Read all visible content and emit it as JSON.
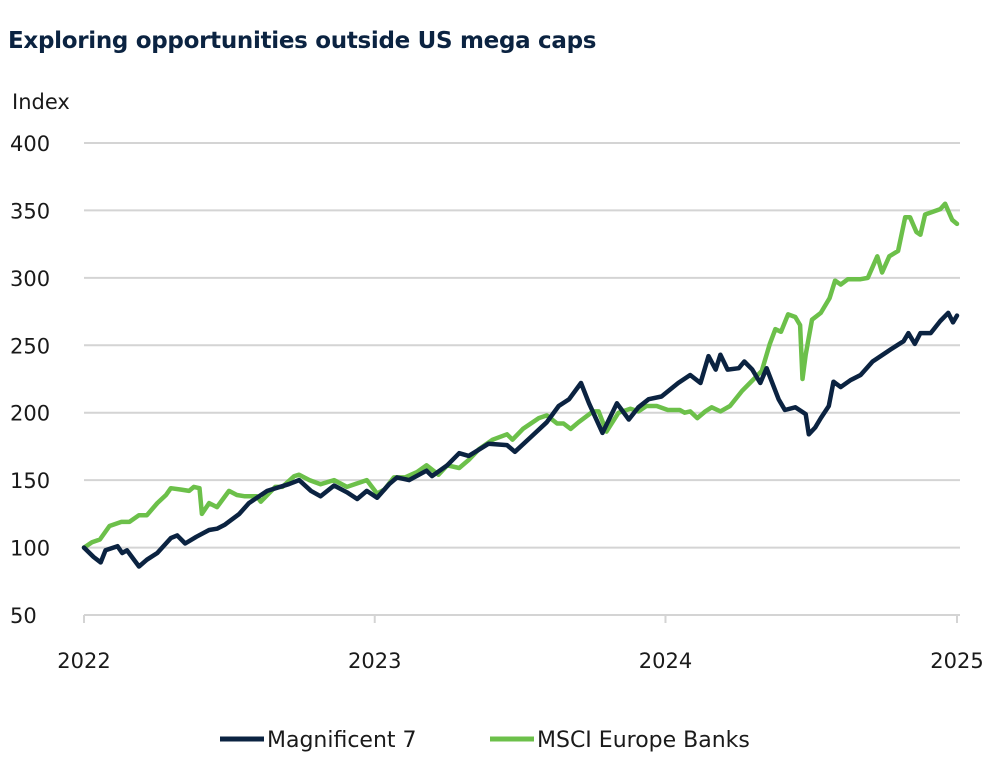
{
  "chart_data": {
    "type": "line",
    "title": "Exploring opportunities outside US mega caps",
    "ylabel": "Index",
    "xlabel": "",
    "ylim": [
      50,
      400
    ],
    "yticks": [
      50,
      100,
      150,
      200,
      250,
      300,
      350,
      400
    ],
    "xlim": [
      "2022-01-01",
      "2025-01-01"
    ],
    "xticks": [
      "2022",
      "2023",
      "2024",
      "2025"
    ],
    "grid": "horizontal",
    "legend": "bottom",
    "series": [
      {
        "name": "Magnificent 7",
        "color": "#0b2341",
        "points": [
          [
            "2022-01-01",
            100
          ],
          [
            "2022-01-13",
            93
          ],
          [
            "2022-01-22",
            89
          ],
          [
            "2022-01-28",
            98
          ],
          [
            "2022-02-12",
            101
          ],
          [
            "2022-02-18",
            96
          ],
          [
            "2022-02-24",
            98
          ],
          [
            "2022-03-11",
            86
          ],
          [
            "2022-03-21",
            91
          ],
          [
            "2022-04-03",
            96
          ],
          [
            "2022-04-20",
            107
          ],
          [
            "2022-04-28",
            109
          ],
          [
            "2022-05-08",
            103
          ],
          [
            "2022-05-22",
            108
          ],
          [
            "2022-06-07",
            113
          ],
          [
            "2022-06-17",
            114
          ],
          [
            "2022-06-27",
            117
          ],
          [
            "2022-07-15",
            125
          ],
          [
            "2022-07-27",
            133
          ],
          [
            "2022-08-19",
            142
          ],
          [
            "2022-09-15",
            147
          ],
          [
            "2022-09-28",
            150
          ],
          [
            "2022-10-13",
            142
          ],
          [
            "2022-10-25",
            138
          ],
          [
            "2022-11-11",
            146
          ],
          [
            "2022-11-27",
            141
          ],
          [
            "2022-12-10",
            136
          ],
          [
            "2022-12-22",
            142
          ],
          [
            "2023-01-04",
            137
          ],
          [
            "2023-01-19",
            147
          ],
          [
            "2023-01-29",
            152
          ],
          [
            "2023-02-13",
            150
          ],
          [
            "2023-03-07",
            157
          ],
          [
            "2023-03-14",
            153
          ],
          [
            "2023-04-02",
            161
          ],
          [
            "2023-04-17",
            170
          ],
          [
            "2023-04-29",
            168
          ],
          [
            "2023-05-24",
            177
          ],
          [
            "2023-06-16",
            176
          ],
          [
            "2023-06-26",
            171
          ],
          [
            "2023-07-16",
            182
          ],
          [
            "2023-08-05",
            193
          ],
          [
            "2023-08-20",
            205
          ],
          [
            "2023-09-02",
            210
          ],
          [
            "2023-09-17",
            222
          ],
          [
            "2023-09-27",
            207
          ],
          [
            "2023-10-14",
            185
          ],
          [
            "2023-11-01",
            207
          ],
          [
            "2023-11-16",
            195
          ],
          [
            "2023-11-28",
            204
          ],
          [
            "2023-12-11",
            210
          ],
          [
            "2023-12-27",
            212
          ],
          [
            "2024-01-17",
            222
          ],
          [
            "2024-02-01",
            228
          ],
          [
            "2024-02-14",
            222
          ],
          [
            "2024-02-24",
            242
          ],
          [
            "2024-03-04",
            232
          ],
          [
            "2024-03-10",
            243
          ],
          [
            "2024-03-19",
            232
          ],
          [
            "2024-04-02",
            233
          ],
          [
            "2024-04-09",
            238
          ],
          [
            "2024-04-19",
            232
          ],
          [
            "2024-04-29",
            222
          ],
          [
            "2024-05-07",
            233
          ],
          [
            "2024-05-22",
            210
          ],
          [
            "2024-05-30",
            202
          ],
          [
            "2024-06-12",
            204
          ],
          [
            "2024-06-25",
            199
          ],
          [
            "2024-06-29",
            184
          ],
          [
            "2024-07-07",
            189
          ],
          [
            "2024-07-14",
            196
          ],
          [
            "2024-07-24",
            205
          ],
          [
            "2024-07-30",
            223
          ],
          [
            "2024-08-08",
            219
          ],
          [
            "2024-08-20",
            224
          ],
          [
            "2024-09-02",
            228
          ],
          [
            "2024-09-17",
            238
          ],
          [
            "2024-10-10",
            247
          ],
          [
            "2024-10-26",
            253
          ],
          [
            "2024-11-01",
            259
          ],
          [
            "2024-11-09",
            251
          ],
          [
            "2024-11-16",
            259
          ],
          [
            "2024-11-29",
            259
          ],
          [
            "2024-12-11",
            268
          ],
          [
            "2024-12-21",
            274
          ],
          [
            "2024-12-27",
            267
          ],
          [
            "2025-01-01",
            272
          ]
        ]
      },
      {
        "name": "MSCI Europe Banks",
        "color": "#6cc04a",
        "points": [
          [
            "2022-01-01",
            100
          ],
          [
            "2022-01-11",
            104
          ],
          [
            "2022-01-21",
            106
          ],
          [
            "2022-02-02",
            116
          ],
          [
            "2022-02-17",
            119
          ],
          [
            "2022-02-27",
            119
          ],
          [
            "2022-03-11",
            124
          ],
          [
            "2022-03-21",
            124
          ],
          [
            "2022-04-03",
            133
          ],
          [
            "2022-04-14",
            139
          ],
          [
            "2022-04-20",
            144
          ],
          [
            "2022-05-03",
            143
          ],
          [
            "2022-05-13",
            142
          ],
          [
            "2022-05-19",
            145
          ],
          [
            "2022-05-26",
            144
          ],
          [
            "2022-05-29",
            125
          ],
          [
            "2022-06-07",
            133
          ],
          [
            "2022-06-17",
            130
          ],
          [
            "2022-07-02",
            142
          ],
          [
            "2022-07-12",
            139
          ],
          [
            "2022-07-22",
            138
          ],
          [
            "2022-08-06",
            138
          ],
          [
            "2022-08-11",
            134
          ],
          [
            "2022-08-29",
            145
          ],
          [
            "2022-09-07",
            145
          ],
          [
            "2022-09-22",
            153
          ],
          [
            "2022-09-28",
            154
          ],
          [
            "2022-10-11",
            150
          ],
          [
            "2022-10-25",
            147
          ],
          [
            "2022-11-11",
            150
          ],
          [
            "2022-11-27",
            145
          ],
          [
            "2022-12-22",
            150
          ],
          [
            "2023-01-04",
            140
          ],
          [
            "2023-01-13",
            143
          ],
          [
            "2023-01-25",
            152
          ],
          [
            "2023-02-08",
            152
          ],
          [
            "2023-02-23",
            156
          ],
          [
            "2023-03-07",
            161
          ],
          [
            "2023-03-22",
            154
          ],
          [
            "2023-04-02",
            161
          ],
          [
            "2023-04-17",
            159
          ],
          [
            "2023-04-29",
            165
          ],
          [
            "2023-05-12",
            173
          ],
          [
            "2023-05-29",
            180
          ],
          [
            "2023-06-16",
            184
          ],
          [
            "2023-06-23",
            180
          ],
          [
            "2023-07-06",
            188
          ],
          [
            "2023-07-26",
            196
          ],
          [
            "2023-08-05",
            198
          ],
          [
            "2023-08-18",
            192
          ],
          [
            "2023-08-26",
            192
          ],
          [
            "2023-09-04",
            188
          ],
          [
            "2023-09-14",
            193
          ],
          [
            "2023-10-02",
            201
          ],
          [
            "2023-10-09",
            201
          ],
          [
            "2023-10-19",
            186
          ],
          [
            "2023-11-03",
            200
          ],
          [
            "2023-11-18",
            203
          ],
          [
            "2023-11-28",
            201
          ],
          [
            "2023-12-08",
            205
          ],
          [
            "2023-12-21",
            205
          ],
          [
            "2024-01-04",
            202
          ],
          [
            "2024-01-19",
            202
          ],
          [
            "2024-01-25",
            200
          ],
          [
            "2024-02-01",
            201
          ],
          [
            "2024-02-10",
            196
          ],
          [
            "2024-02-20",
            201
          ],
          [
            "2024-02-28",
            204
          ],
          [
            "2024-03-10",
            201
          ],
          [
            "2024-03-22",
            205
          ],
          [
            "2024-04-06",
            216
          ],
          [
            "2024-04-16",
            222
          ],
          [
            "2024-05-01",
            231
          ],
          [
            "2024-05-11",
            251
          ],
          [
            "2024-05-18",
            262
          ],
          [
            "2024-05-25",
            260
          ],
          [
            "2024-06-03",
            273
          ],
          [
            "2024-06-12",
            271
          ],
          [
            "2024-06-18",
            265
          ],
          [
            "2024-06-21",
            225
          ],
          [
            "2024-06-25",
            243
          ],
          [
            "2024-07-03",
            269
          ],
          [
            "2024-07-14",
            274
          ],
          [
            "2024-07-25",
            285
          ],
          [
            "2024-08-01",
            298
          ],
          [
            "2024-08-08",
            295
          ],
          [
            "2024-08-17",
            299
          ],
          [
            "2024-09-02",
            299
          ],
          [
            "2024-09-11",
            300
          ],
          [
            "2024-09-23",
            316
          ],
          [
            "2024-09-29",
            304
          ],
          [
            "2024-10-08",
            316
          ],
          [
            "2024-10-19",
            320
          ],
          [
            "2024-10-28",
            345
          ],
          [
            "2024-11-03",
            345
          ],
          [
            "2024-11-11",
            334
          ],
          [
            "2024-11-16",
            332
          ],
          [
            "2024-11-22",
            347
          ],
          [
            "2024-12-11",
            351
          ],
          [
            "2024-12-17",
            355
          ],
          [
            "2024-12-26",
            343
          ],
          [
            "2025-01-01",
            340
          ]
        ]
      }
    ]
  }
}
